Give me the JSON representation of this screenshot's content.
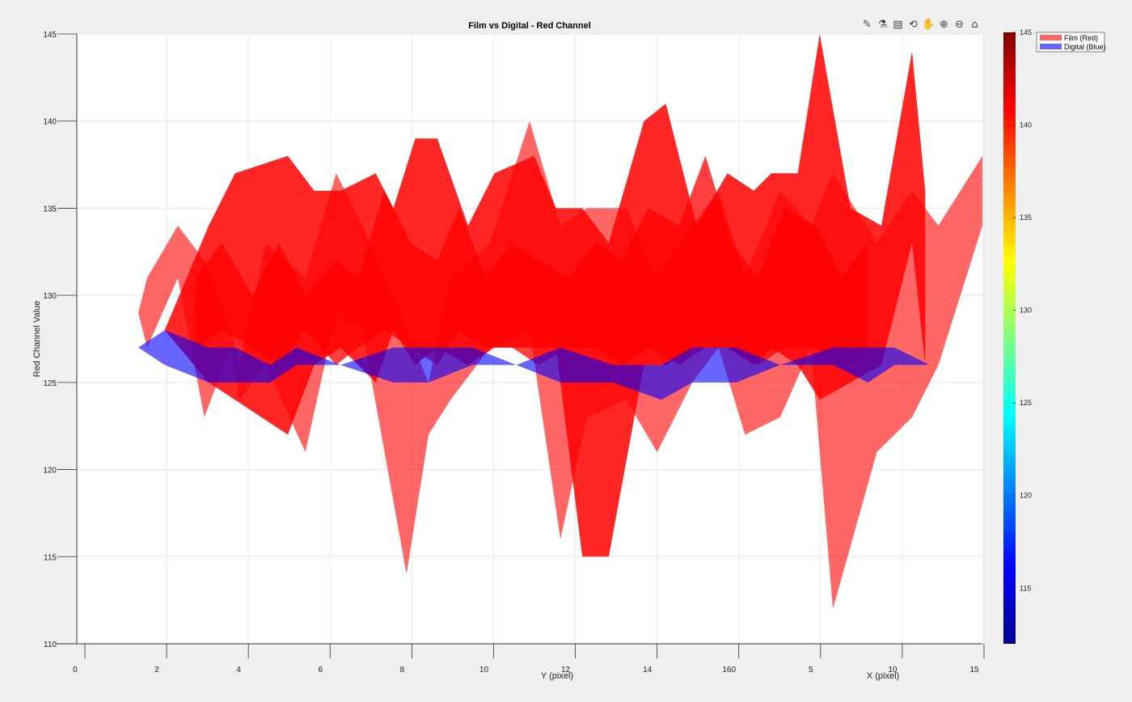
{
  "toolbar": [
    {
      "name": "brush-icon",
      "glyph": "✎"
    },
    {
      "name": "data-tips-icon",
      "glyph": "⚗"
    },
    {
      "name": "datatip-toggle-icon",
      "glyph": "▤"
    },
    {
      "name": "rotate-3d-icon",
      "glyph": "⟲"
    },
    {
      "name": "pan-hand-icon",
      "glyph": "✋"
    },
    {
      "name": "zoom-in-icon",
      "glyph": "⊕"
    },
    {
      "name": "zoom-out-icon",
      "glyph": "⊖"
    },
    {
      "name": "home-icon",
      "glyph": "⌂"
    }
  ],
  "chart_data": {
    "type": "area",
    "title": "Film vs Digital - Red Channel",
    "ylabel": "Red Channel Value",
    "xlabel_y": "Y (pixel)",
    "xlabel_x": "X (pixel)",
    "ylim": [
      110,
      145
    ],
    "yticks": [
      110,
      115,
      120,
      125,
      130,
      135,
      140,
      145
    ],
    "xticks": [
      "0",
      "2",
      "4",
      "6",
      "8",
      "10",
      "12",
      "14",
      "160",
      "5",
      "10",
      "15"
    ],
    "grid": true,
    "colorbar": {
      "range": [
        112,
        145
      ],
      "ticks": [
        115,
        120,
        125,
        130,
        135,
        140,
        145
      ],
      "colormap": "jet"
    },
    "legend": {
      "placement": "top-right",
      "entries": [
        {
          "label": "Film (Red)",
          "color": "#ff6666"
        },
        {
          "label": "Digital (Blue)",
          "color": "#6666ff"
        }
      ]
    },
    "x_range": [
      0,
      20.6
    ],
    "series": [
      {
        "name": "Film (Red)",
        "color": "#ff0000",
        "fills": [
          {
            "opacity": 0.6,
            "x": [
              1.4,
              1.6,
              2.3,
              2.9,
              3.5,
              3.7,
              4.3,
              5.2,
              5.9,
              6.5,
              7.5,
              8.0,
              8.5,
              9.4,
              10.3,
              11.0,
              11.6,
              12.5,
              13.2,
              14.0,
              14.6,
              15.2,
              16.0,
              16.7,
              17.2,
              18.2,
              19.0,
              19.6,
              20.6
            ],
            "top": [
              129,
              131,
              134,
              132,
              128,
              126,
              133,
              131,
              137,
              134,
              128,
              125,
              131,
              133,
              140,
              134,
              135,
              135,
              131,
              134,
              136,
              131,
              136,
              134,
              137,
              133,
              136,
              134,
              138
            ],
            "bottom": [
              129,
              127,
              131,
              123,
              127,
              124,
              126,
              121,
              129,
              128,
              114,
              122,
              124,
              127,
              128,
              116,
              123,
              124,
              121,
              125,
              127,
              122,
              123,
              127,
              112,
              121,
              123,
              126,
              134
            ]
          },
          {
            "opacity": 0.85,
            "x": [
              2.0,
              3.0,
              3.6,
              4.8,
              5.4,
              6.0,
              6.8,
              7.2,
              7.7,
              8.2,
              8.9,
              9.5,
              10.4,
              10.9,
              11.5,
              12.1,
              12.9,
              13.4,
              14.1,
              14.8,
              15.4,
              15.8,
              16.4,
              16.9,
              17.6,
              18.3,
              19.0,
              19.3
            ],
            "top": [
              128,
              134,
              137,
              138,
              136,
              136,
              137,
              135,
              139,
              139,
              134,
              137,
              138,
              135,
              135,
              133,
              140,
              141,
              134,
              137,
              136,
              137,
              137,
              145,
              135,
              134,
              144,
              136
            ],
            "bottom": [
              128,
              125,
              124,
              122,
              126,
              127,
              125,
              128,
              126,
              127,
              126,
              127,
              127,
              127,
              115,
              115,
              126,
              126,
              127,
              127,
              126,
              127,
              126,
              124,
              125,
              126,
              133,
              126
            ]
          },
          {
            "opacity": 0.75,
            "x": [
              2.7,
              3.3,
              4.0,
              4.6,
              5.2,
              5.9,
              6.4,
              7.0,
              7.6,
              8.2,
              8.7,
              9.3,
              9.9,
              10.5,
              11.2,
              11.8,
              12.4,
              13.0,
              13.7,
              14.3,
              14.9,
              15.5,
              16.1,
              16.8,
              17.4,
              18.0
            ],
            "top": [
              131,
              133,
              130,
              133,
              130,
              132,
              131,
              136,
              133,
              132,
              135,
              131,
              133,
              132,
              131,
              133,
              132,
              135,
              134,
              138,
              133,
              131,
              135,
              134,
              131,
              133
            ],
            "bottom": [
              127,
              128,
              127,
              126,
              128,
              126,
              127,
              128,
              127,
              126,
              128,
              127,
              127,
              126,
              127,
              127,
              126,
              127,
              126,
              127,
              127,
              126,
              127,
              127,
              126,
              127
            ]
          }
        ]
      },
      {
        "name": "Digital (Blue)",
        "color": "#0000ff",
        "fills": [
          {
            "opacity": 0.6,
            "x": [
              1.4,
              2.0,
              3.0,
              3.6,
              4.4,
              5.0,
              6.0,
              7.2,
              8.0,
              9.0,
              10.0,
              11.0,
              12.2,
              13.3,
              14.0,
              15.0,
              16.0,
              17.2,
              18.0,
              18.6,
              19.4,
              20.2
            ],
            "top": [
              127,
              128,
              127,
              127,
              126,
              127,
              126,
              127,
              127,
              127,
              126,
              127,
              126,
              126,
              127,
              127,
              126,
              127,
              127,
              127,
              126,
              126
            ],
            "bottom": [
              127,
              126,
              125,
              125,
              125,
              126,
              126,
              125,
              125,
              126,
              126,
              125,
              125,
              124,
              125,
              125,
              126,
              126,
              125,
              126,
              126,
              126
            ]
          }
        ]
      }
    ]
  }
}
